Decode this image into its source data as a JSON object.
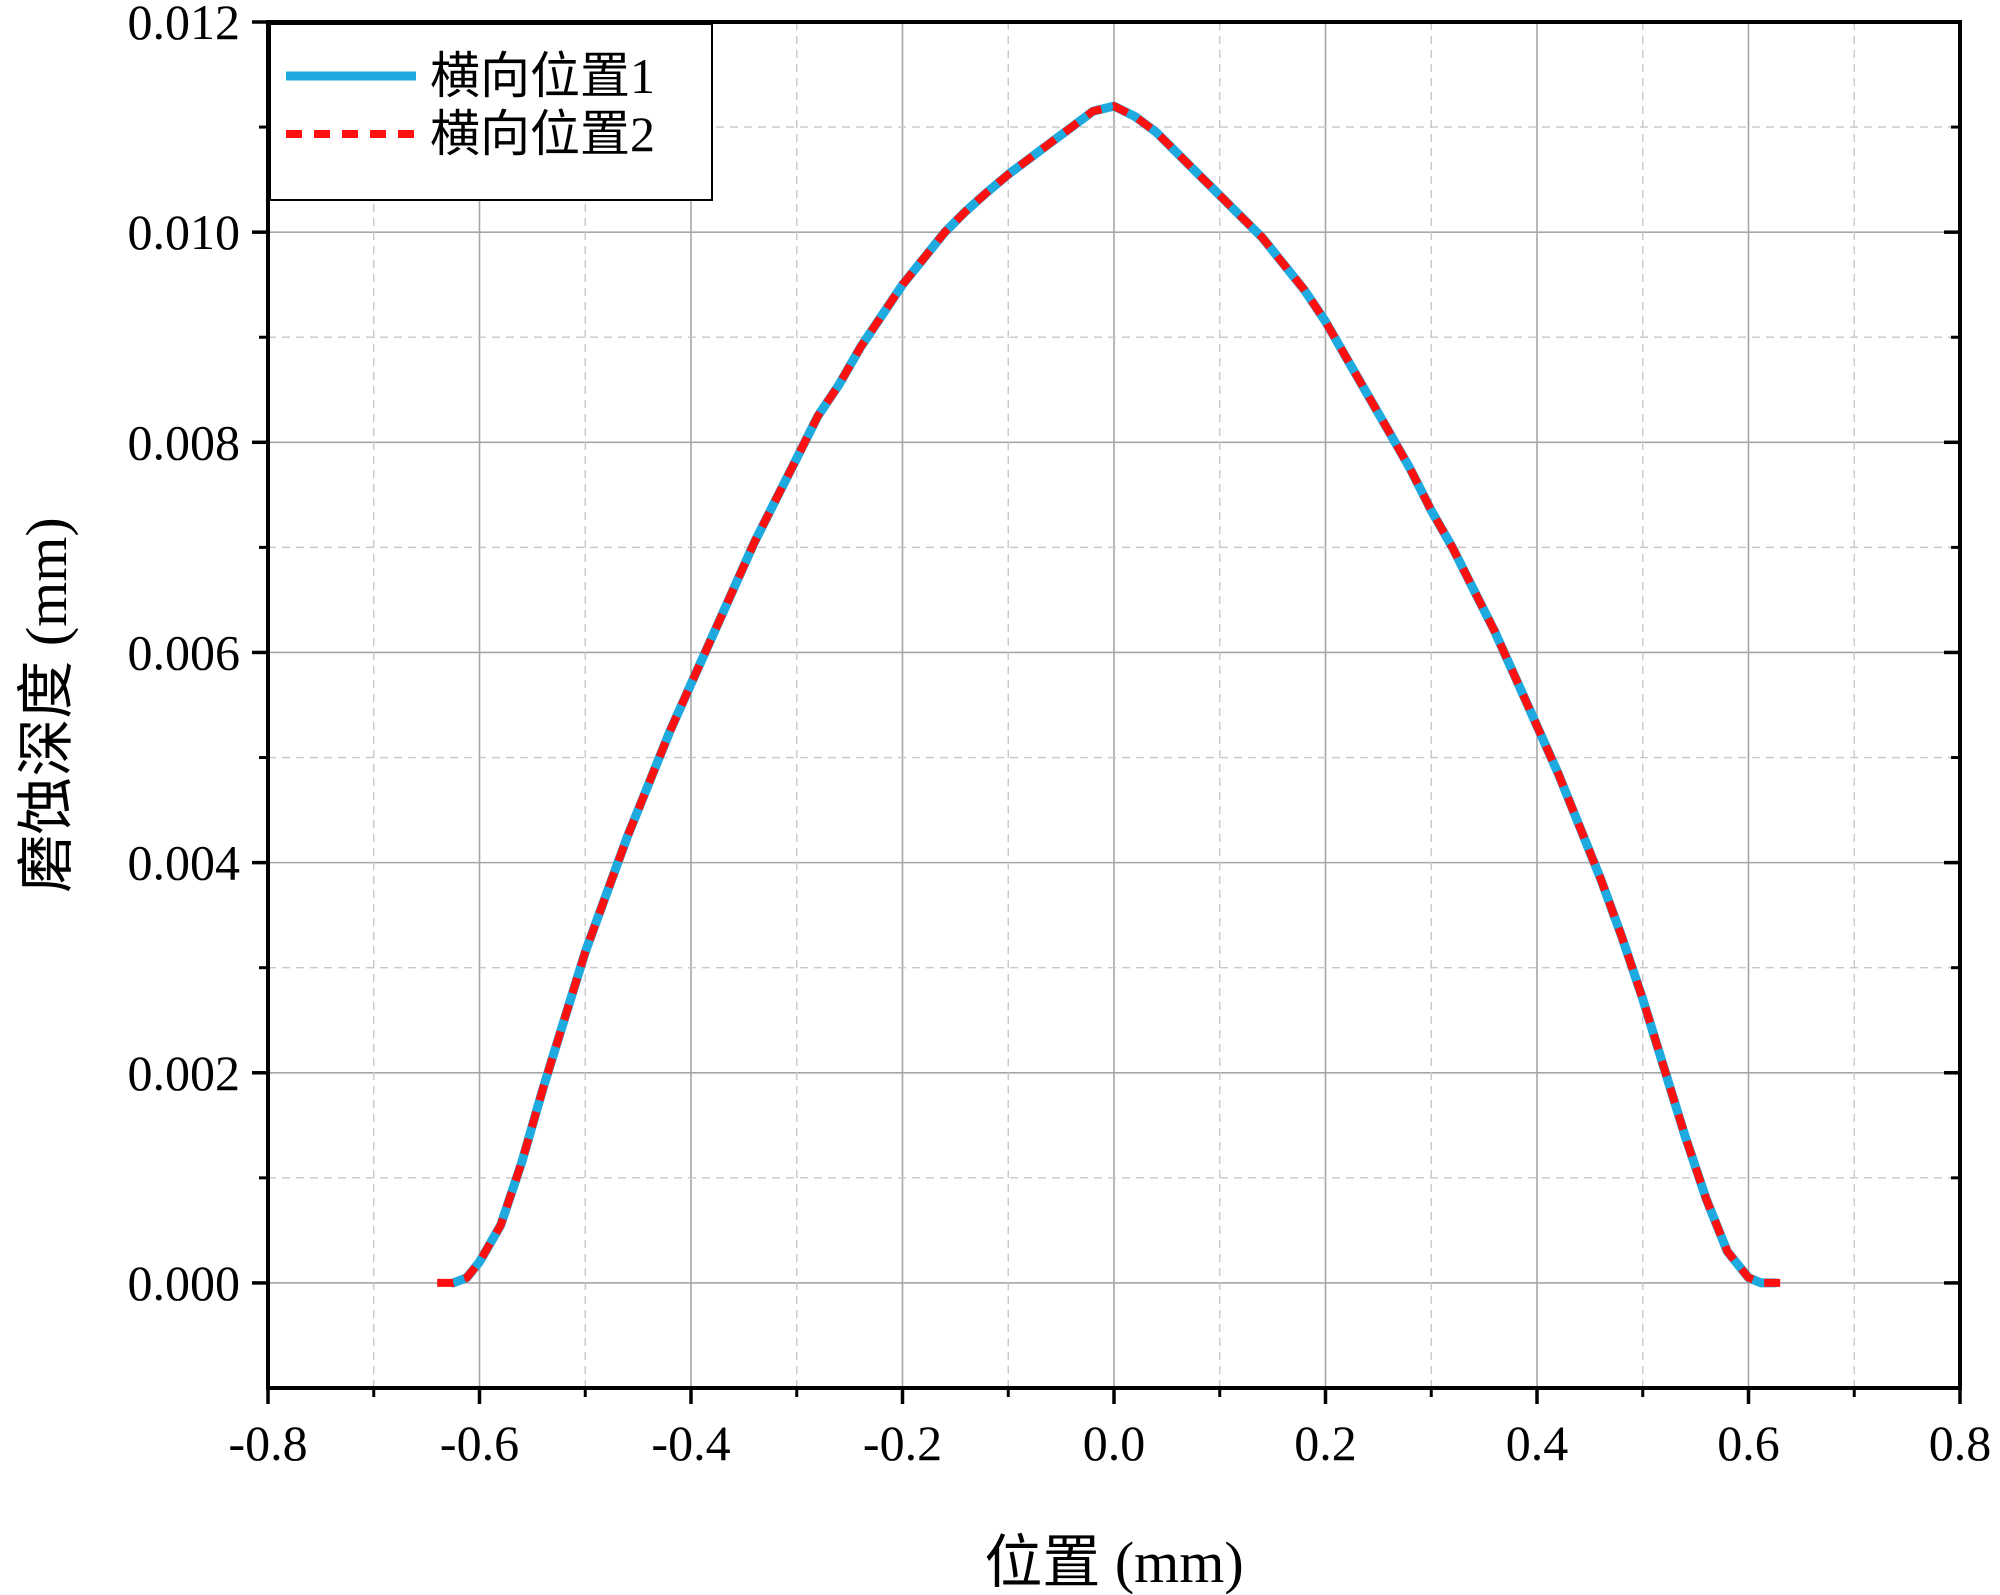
{
  "chart_data": {
    "type": "line",
    "title": "",
    "xlabel": "位置 (mm)",
    "ylabel": "磨蚀深度 (mm)",
    "xlim": [
      -0.8,
      0.8
    ],
    "ylim": [
      -0.001,
      0.012
    ],
    "x_ticks": [
      -0.8,
      -0.6,
      -0.4,
      -0.2,
      0.0,
      0.2,
      0.4,
      0.6,
      0.8
    ],
    "x_tick_labels": [
      "-0.8",
      "-0.6",
      "-0.4",
      "-0.2",
      "0.0",
      "0.2",
      "0.4",
      "0.6",
      "0.8"
    ],
    "y_ticks": [
      0.0,
      0.002,
      0.004,
      0.006,
      0.008,
      0.01,
      0.012
    ],
    "y_tick_labels": [
      "0.000",
      "0.002",
      "0.004",
      "0.006",
      "0.008",
      "0.010",
      "0.012"
    ],
    "grid": true,
    "legend_position": "top-left",
    "series": [
      {
        "name": "横向位置1",
        "color": "#1EAADF",
        "style": "solid",
        "x": [
          -0.625,
          -0.612,
          -0.6,
          -0.58,
          -0.56,
          -0.54,
          -0.52,
          -0.5,
          -0.48,
          -0.46,
          -0.44,
          -0.42,
          -0.4,
          -0.38,
          -0.36,
          -0.34,
          -0.32,
          -0.3,
          -0.28,
          -0.26,
          -0.24,
          -0.22,
          -0.2,
          -0.18,
          -0.16,
          -0.14,
          -0.12,
          -0.1,
          -0.08,
          -0.06,
          -0.04,
          -0.02,
          0.0,
          0.02,
          0.04,
          0.06,
          0.08,
          0.1,
          0.12,
          0.14,
          0.16,
          0.18,
          0.2,
          0.22,
          0.24,
          0.26,
          0.28,
          0.3,
          0.32,
          0.34,
          0.36,
          0.38,
          0.4,
          0.42,
          0.44,
          0.46,
          0.48,
          0.5,
          0.52,
          0.54,
          0.56,
          0.58,
          0.6,
          0.612,
          0.625
        ],
        "y": [
          0.0,
          5e-05,
          0.0002,
          0.00055,
          0.00115,
          0.00185,
          0.0025,
          0.00315,
          0.0037,
          0.00425,
          0.00475,
          0.00525,
          0.0057,
          0.00615,
          0.0066,
          0.00705,
          0.00745,
          0.00785,
          0.00825,
          0.00855,
          0.0089,
          0.0092,
          0.0095,
          0.00975,
          0.01,
          0.0102,
          0.01038,
          0.01055,
          0.0107,
          0.01085,
          0.011,
          0.01115,
          0.0112,
          0.0111,
          0.01095,
          0.01075,
          0.01055,
          0.01035,
          0.01015,
          0.00995,
          0.0097,
          0.00945,
          0.00915,
          0.0088,
          0.00845,
          0.0081,
          0.00775,
          0.00735,
          0.007,
          0.0066,
          0.0062,
          0.00575,
          0.0053,
          0.00485,
          0.00435,
          0.00385,
          0.0033,
          0.0027,
          0.00205,
          0.0014,
          0.0008,
          0.0003,
          5e-05,
          0.0,
          0.0
        ]
      },
      {
        "name": "横向位置2",
        "color": "#FF1010",
        "style": "dashed",
        "x": [
          -0.64,
          -0.625,
          -0.612,
          -0.6,
          -0.58,
          -0.56,
          -0.54,
          -0.52,
          -0.5,
          -0.48,
          -0.46,
          -0.44,
          -0.42,
          -0.4,
          -0.38,
          -0.36,
          -0.34,
          -0.32,
          -0.3,
          -0.28,
          -0.26,
          -0.24,
          -0.22,
          -0.2,
          -0.18,
          -0.16,
          -0.14,
          -0.12,
          -0.1,
          -0.08,
          -0.06,
          -0.04,
          -0.02,
          0.0,
          0.02,
          0.04,
          0.06,
          0.08,
          0.1,
          0.12,
          0.14,
          0.16,
          0.18,
          0.2,
          0.22,
          0.24,
          0.26,
          0.28,
          0.3,
          0.32,
          0.34,
          0.36,
          0.38,
          0.4,
          0.42,
          0.44,
          0.46,
          0.48,
          0.5,
          0.52,
          0.54,
          0.56,
          0.58,
          0.6,
          0.612,
          0.625,
          0.64
        ],
        "y": [
          0.0,
          0.0,
          5e-05,
          0.0002,
          0.00055,
          0.00115,
          0.00185,
          0.0025,
          0.00315,
          0.0037,
          0.00425,
          0.00475,
          0.00525,
          0.0057,
          0.00615,
          0.0066,
          0.00705,
          0.00745,
          0.00785,
          0.00825,
          0.00855,
          0.0089,
          0.0092,
          0.0095,
          0.00975,
          0.01,
          0.0102,
          0.01038,
          0.01055,
          0.0107,
          0.01085,
          0.011,
          0.01115,
          0.0112,
          0.0111,
          0.01095,
          0.01075,
          0.01055,
          0.01035,
          0.01015,
          0.00995,
          0.0097,
          0.00945,
          0.00915,
          0.0088,
          0.00845,
          0.0081,
          0.00775,
          0.00735,
          0.007,
          0.0066,
          0.0062,
          0.00575,
          0.0053,
          0.00485,
          0.00435,
          0.00385,
          0.0033,
          0.0027,
          0.00205,
          0.0014,
          0.0008,
          0.0003,
          5e-05,
          0.0,
          0.0,
          0.0
        ]
      }
    ]
  }
}
